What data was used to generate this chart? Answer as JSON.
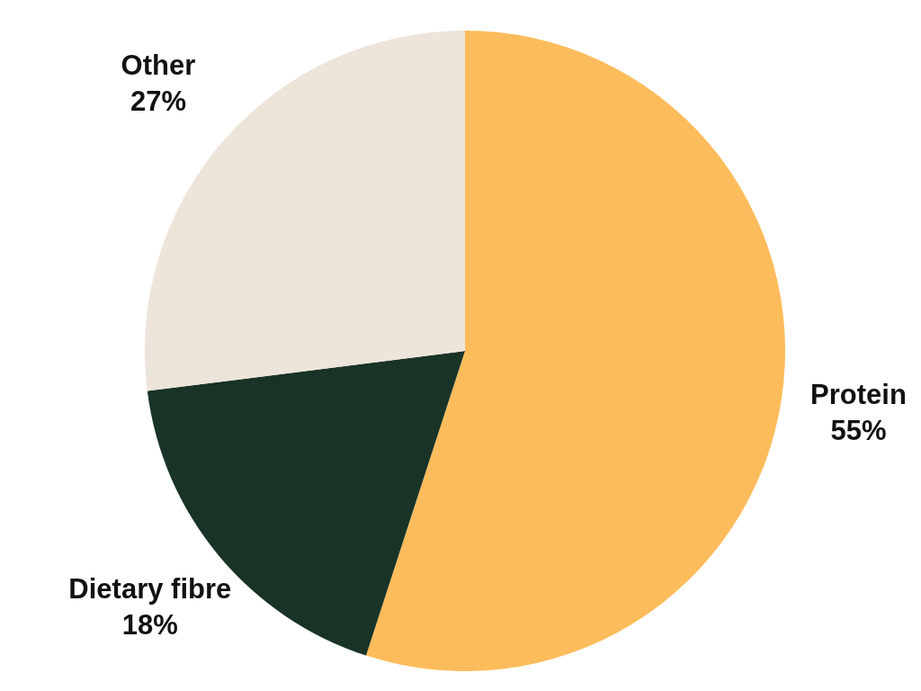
{
  "chart_data": {
    "type": "pie",
    "categories": [
      "Protein",
      "Dietary fibre",
      "Other"
    ],
    "values": [
      55,
      18,
      27
    ],
    "colors": [
      "#fdbc5b",
      "#193326",
      "#ede4da"
    ],
    "value_labels": [
      "55%",
      "18%",
      "27%"
    ]
  }
}
